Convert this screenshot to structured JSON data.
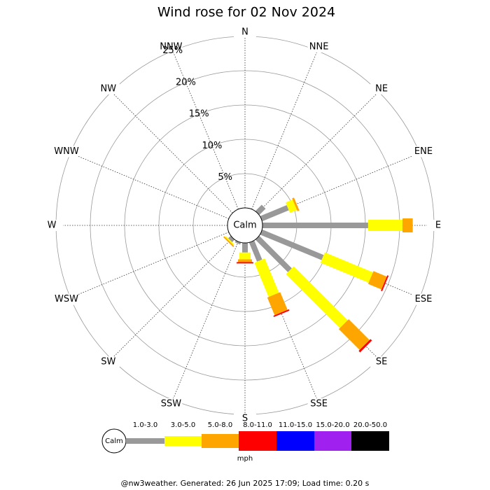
{
  "chart_data": {
    "type": "windrose",
    "title": "Wind rose for 02 Nov 2024",
    "categories": [
      "N",
      "NNE",
      "NE",
      "ENE",
      "E",
      "ESE",
      "SE",
      "SSE",
      "S",
      "SSW",
      "SW",
      "WSW",
      "W",
      "WNW",
      "NW",
      "NNW"
    ],
    "series": [
      {
        "name": "1.0-3.0",
        "color": "#999999",
        "values": [
          0,
          0,
          1.3,
          4.2,
          15.4,
          9.7,
          6.7,
          3.0,
          1.4,
          0.3,
          0.5,
          0,
          0,
          0,
          0,
          0
        ]
      },
      {
        "name": "3.0-5.0",
        "color": "#ffff00",
        "values": [
          0,
          0,
          0,
          1.1,
          5.0,
          7.6,
          11.1,
          5.4,
          1.0,
          0,
          0.2,
          0,
          0,
          0,
          0,
          0
        ]
      },
      {
        "name": "5.0-8.0",
        "color": "#ffa500",
        "values": [
          0,
          0,
          0,
          0.3,
          1.5,
          2.1,
          4.3,
          2.8,
          0.4,
          0,
          0.2,
          0,
          0,
          0,
          0,
          0
        ]
      },
      {
        "name": "8.0-11.0",
        "color": "#ff0000",
        "values": [
          0,
          0,
          0,
          0,
          0,
          0.2,
          0.3,
          0.2,
          0.2,
          0,
          0,
          0,
          0,
          0,
          0,
          0
        ]
      },
      {
        "name": "11.0-15.0",
        "color": "#0000ff",
        "values": [
          0,
          0,
          0,
          0,
          0,
          0,
          0,
          0,
          0,
          0,
          0,
          0,
          0,
          0,
          0,
          0
        ]
      },
      {
        "name": "15.0-20.0",
        "color": "#a020f0",
        "values": [
          0,
          0,
          0,
          0,
          0,
          0,
          0,
          0,
          0,
          0,
          0,
          0,
          0,
          0,
          0,
          0
        ]
      },
      {
        "name": "20.0-50.0",
        "color": "#000000",
        "values": [
          0,
          0,
          0,
          0,
          0,
          0,
          0,
          0,
          0,
          0,
          0,
          0,
          0,
          0,
          0,
          0
        ]
      }
    ],
    "ylim": [
      0,
      25
    ],
    "yticks": [
      {
        "value": 5,
        "label": "5%"
      },
      {
        "value": 10,
        "label": "10%"
      },
      {
        "value": 15,
        "label": "15%"
      },
      {
        "value": 20,
        "label": "20%"
      },
      {
        "value": 25,
        "label": "25%"
      }
    ],
    "calm_label": "Calm",
    "unit": "mph",
    "footer": "@nw3weather. Generated: 26 Jun 2025 17:09; Load time: 0.20 s"
  }
}
